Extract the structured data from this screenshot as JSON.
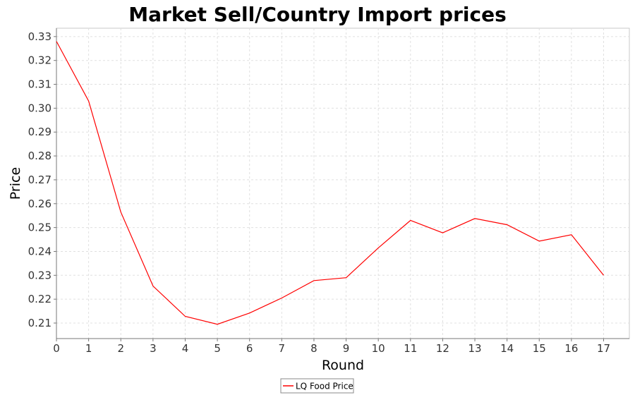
{
  "chart_data": {
    "type": "line",
    "title": "Market Sell/Country Import prices",
    "xlabel": "Round",
    "ylabel": "Price",
    "x": [
      0,
      1,
      2,
      3,
      4,
      5,
      6,
      7,
      8,
      9,
      10,
      11,
      12,
      13,
      14,
      15,
      16,
      17
    ],
    "x_ticks": [
      "0",
      "1",
      "2",
      "3",
      "4",
      "5",
      "6",
      "7",
      "8",
      "9",
      "10",
      "11",
      "12",
      "13",
      "14",
      "15",
      "16",
      "17"
    ],
    "y_ticks": [
      "0.21",
      "0.22",
      "0.23",
      "0.24",
      "0.25",
      "0.26",
      "0.27",
      "0.28",
      "0.29",
      "0.30",
      "0.31",
      "0.32",
      "0.33"
    ],
    "xlim": [
      0,
      17.8
    ],
    "ylim": [
      0.2035,
      0.3335
    ],
    "grid": true,
    "legend_position": "bottom-center",
    "series": [
      {
        "name": "LQ Food Price",
        "color": "#ff0000",
        "values": [
          0.328,
          0.303,
          0.2565,
          0.2255,
          0.2128,
          0.2095,
          0.2142,
          0.2205,
          0.2278,
          0.229,
          0.2415,
          0.253,
          0.2478,
          0.2538,
          0.2512,
          0.2443,
          0.247,
          0.23
        ]
      }
    ]
  }
}
